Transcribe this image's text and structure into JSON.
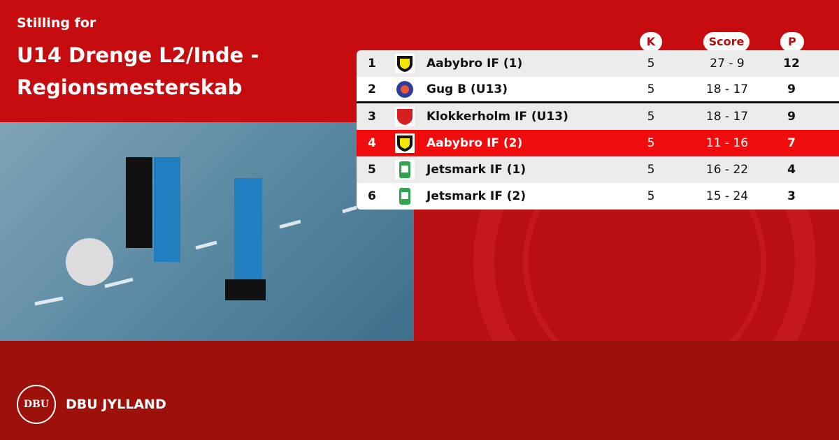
{
  "header": {
    "subtitle": "Stilling for",
    "title": "U14 Drenge L2/Inde - Regionsmesterskab"
  },
  "columns": {
    "k": "K",
    "score": "Score",
    "p": "P"
  },
  "rows": [
    {
      "pos": "1",
      "team": "Aabybro IF (1)",
      "k": "5",
      "score": "27 - 9",
      "p": "12",
      "logo": "aabybro-crest"
    },
    {
      "pos": "2",
      "team": "Gug B (U13)",
      "k": "5",
      "score": "18 - 17",
      "p": "9",
      "logo": "gug-crest"
    },
    {
      "pos": "3",
      "team": "Klokkerholm IF (U13)",
      "k": "5",
      "score": "18 - 17",
      "p": "9",
      "logo": "kif-crest"
    },
    {
      "pos": "4",
      "team": "Aabybro IF (2)",
      "k": "5",
      "score": "11 - 16",
      "p": "7",
      "logo": "aabybro-crest",
      "highlighted": true
    },
    {
      "pos": "5",
      "team": "Jetsmark IF (1)",
      "k": "5",
      "score": "16 - 22",
      "p": "4",
      "logo": "jetsmark-crest"
    },
    {
      "pos": "6",
      "team": "Jetsmark IF (2)",
      "k": "5",
      "score": "15 - 24",
      "p": "3",
      "logo": "jetsmark-crest"
    }
  ],
  "footer": {
    "brand": "DBU JYLLAND",
    "seal_text": "DBU"
  },
  "colors": {
    "red": "#c70c10",
    "highlight": "#f00c0c",
    "dark": "#9e110a"
  }
}
